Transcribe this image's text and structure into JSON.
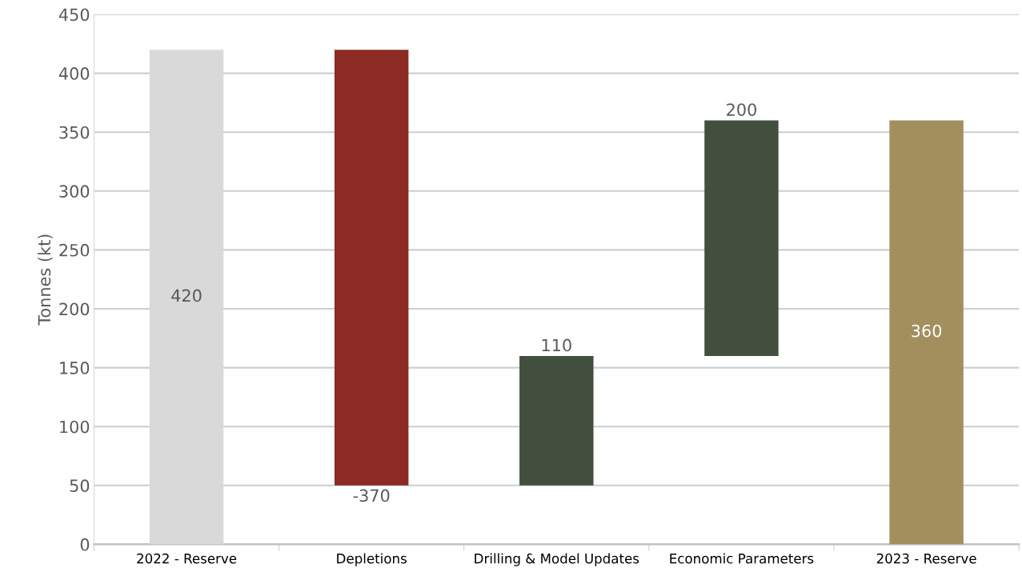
{
  "chart_data": {
    "type": "bar",
    "ylabel": "Tonnes (kt)",
    "categories": [
      "2022 - Reserve",
      "Depletions",
      "Drilling & Model Updates",
      "Economic Parameters",
      "2023 - Reserve"
    ],
    "values": [
      420,
      -370,
      110,
      200,
      360
    ],
    "base": [
      0,
      420,
      50,
      160,
      0
    ],
    "colors": [
      "#d9d9d9",
      "#8b2b23",
      "#434f3e",
      "#434f3e",
      "#a38f5e"
    ],
    "ylim": [
      0,
      450
    ],
    "yticks": [
      0,
      50,
      100,
      150,
      200,
      250,
      300,
      350,
      400,
      450
    ],
    "grid": "y",
    "data_labels": true
  }
}
